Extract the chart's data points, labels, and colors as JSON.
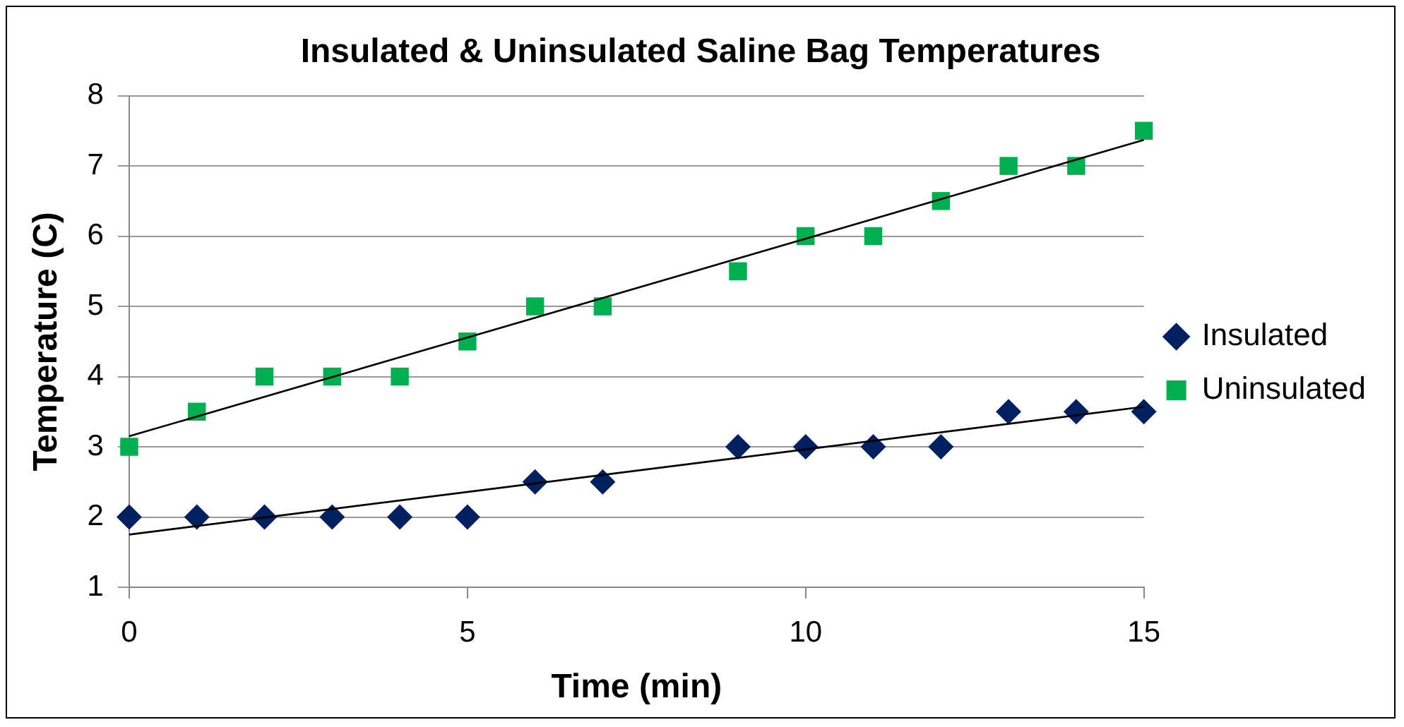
{
  "chart_data": {
    "type": "scatter",
    "title": "Insulated & Uninsulated Saline Bag Temperatures",
    "xlabel": "Time (min)",
    "ylabel": "Temperature (C)",
    "xlim": [
      0,
      15
    ],
    "xticks": [
      0,
      5,
      10,
      15
    ],
    "ylim": [
      1,
      8
    ],
    "yticks": [
      1,
      2,
      3,
      4,
      5,
      6,
      7,
      8
    ],
    "grid": "y",
    "legend": "right",
    "series": [
      {
        "name": "Insulated",
        "color": "#002060",
        "marker": "diamond",
        "x": [
          0,
          1,
          2,
          3,
          4,
          5,
          6,
          7,
          9,
          10,
          11,
          12,
          13,
          14,
          15
        ],
        "values": [
          2,
          2,
          2,
          2,
          2,
          2,
          2.5,
          2.5,
          3,
          3,
          3,
          3,
          3.5,
          3.5,
          3.5
        ]
      },
      {
        "name": "Uninsulated",
        "color": "#00b050",
        "marker": "square",
        "x": [
          0,
          1,
          2,
          3,
          4,
          5,
          6,
          7,
          9,
          10,
          11,
          12,
          13,
          14,
          15
        ],
        "values": [
          3,
          3.5,
          4,
          4,
          4,
          4.5,
          5,
          5,
          5.5,
          6,
          6,
          6.5,
          7,
          7,
          7.5
        ]
      },
      {
        "type": "line",
        "color": "#000000",
        "marker": "none",
        "x": [
          0,
          15
        ],
        "values": [
          1.75,
          3.57
        ]
      },
      {
        "type": "line",
        "color": "#000000",
        "marker": "none",
        "x": [
          0,
          15
        ],
        "values": [
          3.15,
          7.37
        ]
      }
    ]
  }
}
